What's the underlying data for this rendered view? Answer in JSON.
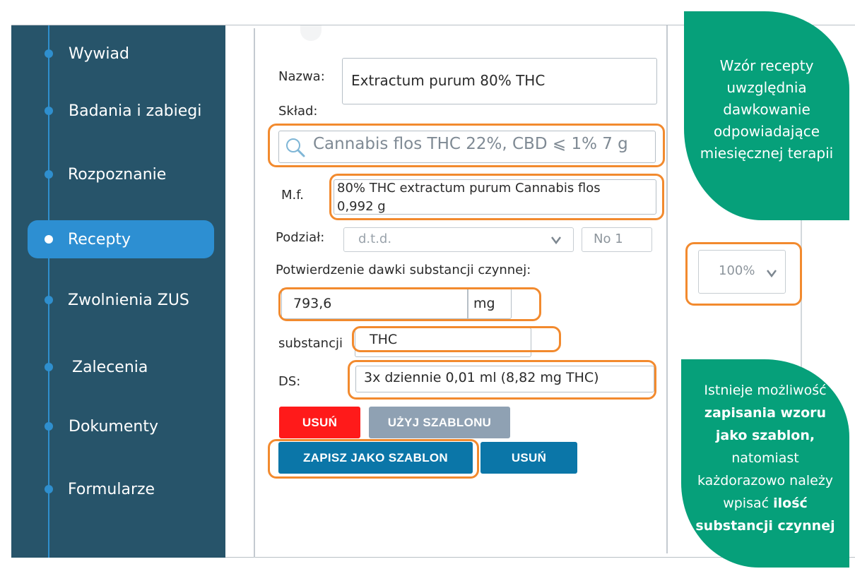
{
  "sidebar": {
    "items": [
      {
        "label": "Wywiad"
      },
      {
        "label": "Badania i zabiegi"
      },
      {
        "label": "Rozpoznanie"
      },
      {
        "label": "Recepty"
      },
      {
        "label": "Zwolnienia ZUS"
      },
      {
        "label": "Zalecenia"
      },
      {
        "label": "Dokumenty"
      },
      {
        "label": "Formularze"
      }
    ],
    "active_index": 3
  },
  "form": {
    "name_label": "Nazwa:",
    "name_value": "Extractum purum 80% THC",
    "composition_label": "Skład:",
    "composition_value": "Cannabis flos THC 22%, CBD ⩽ 1% 7 g",
    "mf_label": "M.f.",
    "mf_line1": "80% THC extractum purum Cannabis flos",
    "mf_line2": "0,992 g",
    "division_label": "Podział:",
    "division_value": "d.t.d.",
    "division_count": "No 1",
    "dose_confirm_label": "Potwierdzenie dawki substancji czynnej:",
    "dose_value": "793,6",
    "dose_unit": "mg",
    "substance_label": "substancji",
    "substance_value": "THC",
    "ds_label": "DS:",
    "ds_value": "3x dziennie 0,01 ml (8,82 mg THC)",
    "percent_value": "100%"
  },
  "buttons": {
    "delete_red": "USUŃ",
    "use_template": "UŻYJ SZABLONU",
    "save_template": "ZAPISZ JAKO SZABLON",
    "delete_blue": "USUŃ"
  },
  "callouts": {
    "top": {
      "lines": [
        "Wzór recepty",
        "uwzględnia",
        "dawkowanie",
        "odpowiadające",
        "miesięcznej terapii"
      ]
    },
    "bottom": {
      "line1": "Istnieje możliwość",
      "line2_bold": "zapisania wzoru",
      "line3_bold": "jako szablon,",
      "line4": "natomiast",
      "line5": "każdorazowo należy",
      "line6_normal": "wpisać ",
      "line6_bold": "ilość",
      "line7_bold": "substancji czynnej"
    }
  },
  "colors": {
    "sidebar_bg": "#27546a",
    "sidebar_active": "#2d8fd2",
    "highlight": "#f28a2e",
    "callout_bg": "#06a07a",
    "delete_red": "#ff1a1a",
    "template_gray": "#8fa1b3",
    "save_blue": "#0b76a8"
  },
  "icons": {
    "search": "search-icon",
    "dropdown": "chevron-down-icon"
  }
}
